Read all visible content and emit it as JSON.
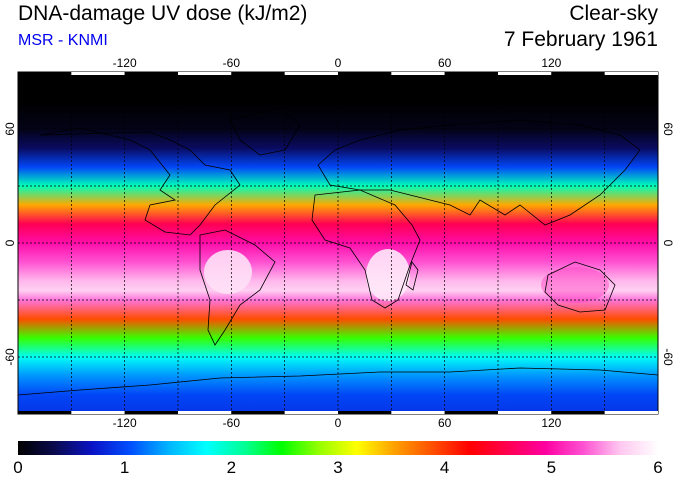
{
  "header": {
    "title": "DNA-damage UV dose (kJ/m2)",
    "subtitle": "MSR - KNMI",
    "condition": "Clear-sky",
    "date": "7 February 1961"
  },
  "map": {
    "lon_range": [
      -180,
      180
    ],
    "lat_range": [
      -90,
      90
    ],
    "grid_lon_step": 30,
    "grid_lat_step": 30,
    "lon_labels": [
      "-120",
      "-60",
      "0",
      "60",
      "120"
    ],
    "lat_labels_left": [
      "60",
      "0",
      "-60"
    ],
    "lat_labels_right": [
      "60",
      "0",
      "-60"
    ],
    "lon_label_values": [
      -120,
      -60,
      0,
      60,
      120
    ],
    "lat_label_values": [
      60,
      0,
      -60
    ]
  },
  "colorbar": {
    "min": 0,
    "max": 6,
    "labels": [
      "0",
      "1",
      "2",
      "3",
      "4",
      "5",
      "6"
    ],
    "colors": [
      "#000000",
      "#0a0a50",
      "#0a14c8",
      "#0050ff",
      "#00b4ff",
      "#00ffff",
      "#00ff96",
      "#00ff00",
      "#96ff00",
      "#ffff00",
      "#ffa000",
      "#ff5000",
      "#ff0000",
      "#ff0050",
      "#ff00a0",
      "#ff50d2",
      "#ffc8f0",
      "#ffffff"
    ]
  },
  "chart_data": {
    "type": "heatmap",
    "title": "DNA-damage UV dose (kJ/m2)",
    "variable": "DNA-damage UV dose",
    "units": "kJ/m2",
    "latitude_profile": {
      "lat": [
        90,
        75,
        60,
        50,
        40,
        30,
        20,
        10,
        0,
        -10,
        -20,
        -25,
        -30,
        -40,
        -50,
        -60,
        -70,
        -80,
        -90
      ],
      "dose": [
        0.0,
        0.0,
        0.1,
        0.4,
        1.0,
        2.0,
        3.5,
        4.6,
        5.0,
        5.3,
        5.6,
        5.7,
        5.4,
        3.9,
        2.6,
        1.8,
        1.3,
        1.0,
        0.9
      ]
    }
  }
}
